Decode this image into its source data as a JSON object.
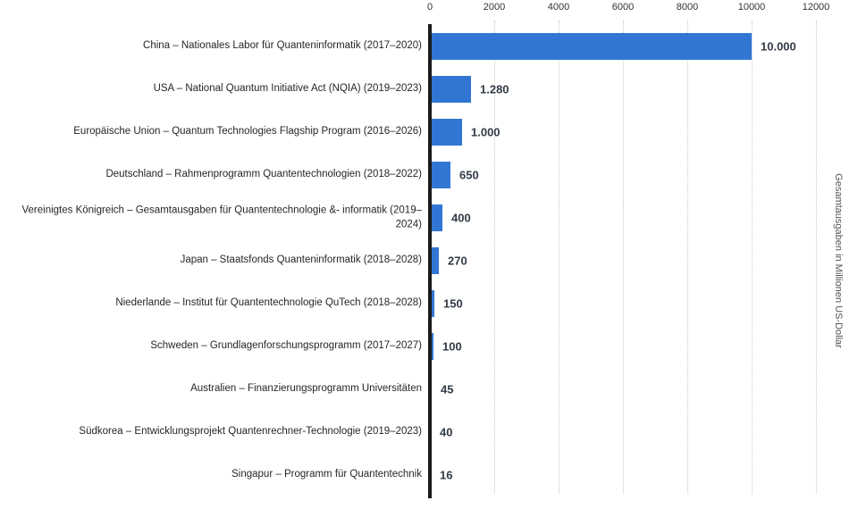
{
  "chart_data": {
    "type": "bar",
    "orientation": "horizontal",
    "title": "",
    "ylabel": "Gesamtausgaben in Millionen US-Dollar",
    "xlim": [
      0,
      12000
    ],
    "x_ticks": [
      0,
      2000,
      4000,
      6000,
      8000,
      10000,
      12000
    ],
    "grid": "vertical-dotted",
    "legend": "none",
    "bar_color": "#3276d3",
    "categories": [
      "China – Nationales Labor für Quanteninformatik (2017–2020)",
      "USA – National Quantum Initiative Act (NQIA) (2019–2023)",
      "Europäische Union – Quantum Technologies Flagship Program (2016–2026)",
      "Deutschland – Rahmenprogramm Quantentechnologien (2018–2022)",
      "Vereinigtes Königreich – Gesamtausgaben für Quantentechnologie &- informatik (2019–2024)",
      "Japan – Staatsfonds Quanteninformatik (2018–2028)",
      "Niederlande – Institut für Quantentechnologie QuTech (2018–2028)",
      "Schweden – Grundlagenforschungsprogramm (2017–2027)",
      "Australien – Finanzierungsprogramm Universitäten",
      "Südkorea – Entwicklungsprojekt Quantenrechner-Technologie (2019–2023)",
      "Singapur – Programm für Quantentechnik"
    ],
    "values": [
      10000,
      1280,
      1000,
      650,
      400,
      270,
      150,
      100,
      45,
      40,
      16
    ],
    "value_labels": [
      "10.000",
      "1.280",
      "1.000",
      "650",
      "400",
      "270",
      "150",
      "100",
      "45",
      "40",
      "16"
    ]
  }
}
